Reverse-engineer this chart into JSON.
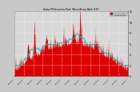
{
  "title": "Solar PV/Inverter Perf. West Array A&S (1D)",
  "legend_actual": "ACTUAL kW",
  "legend_avg": "AVERAGE kW",
  "bg_color": "#c8c8c8",
  "plot_bg_color": "#d8d8d8",
  "grid_color": "#ffffff",
  "area_color": "#dd0000",
  "area_edge_color": "#ff2222",
  "avg_line_color": "#00bbcc",
  "title_color": "#000000",
  "axis_color": "#666666",
  "tick_color": "#000000",
  "legend_actual_color": "#ff0000",
  "legend_avg_color": "#0066ff",
  "n_points": 365,
  "ylim_max": 1.0,
  "x_month_labels": [
    "01/01/10",
    "02/01/10",
    "03/01/10",
    "04/01/10",
    "05/01/10",
    "06/01/10",
    "07/01/10",
    "08/01/10",
    "09/01/10",
    "10/01/10",
    "11/01/10",
    "12/01/10",
    "01/01/11"
  ],
  "ytick_labels": [
    "0",
    "2",
    "4",
    "6",
    "8",
    "10",
    "12"
  ],
  "ytick_vals": [
    0.0,
    0.167,
    0.333,
    0.5,
    0.667,
    0.833,
    1.0
  ]
}
